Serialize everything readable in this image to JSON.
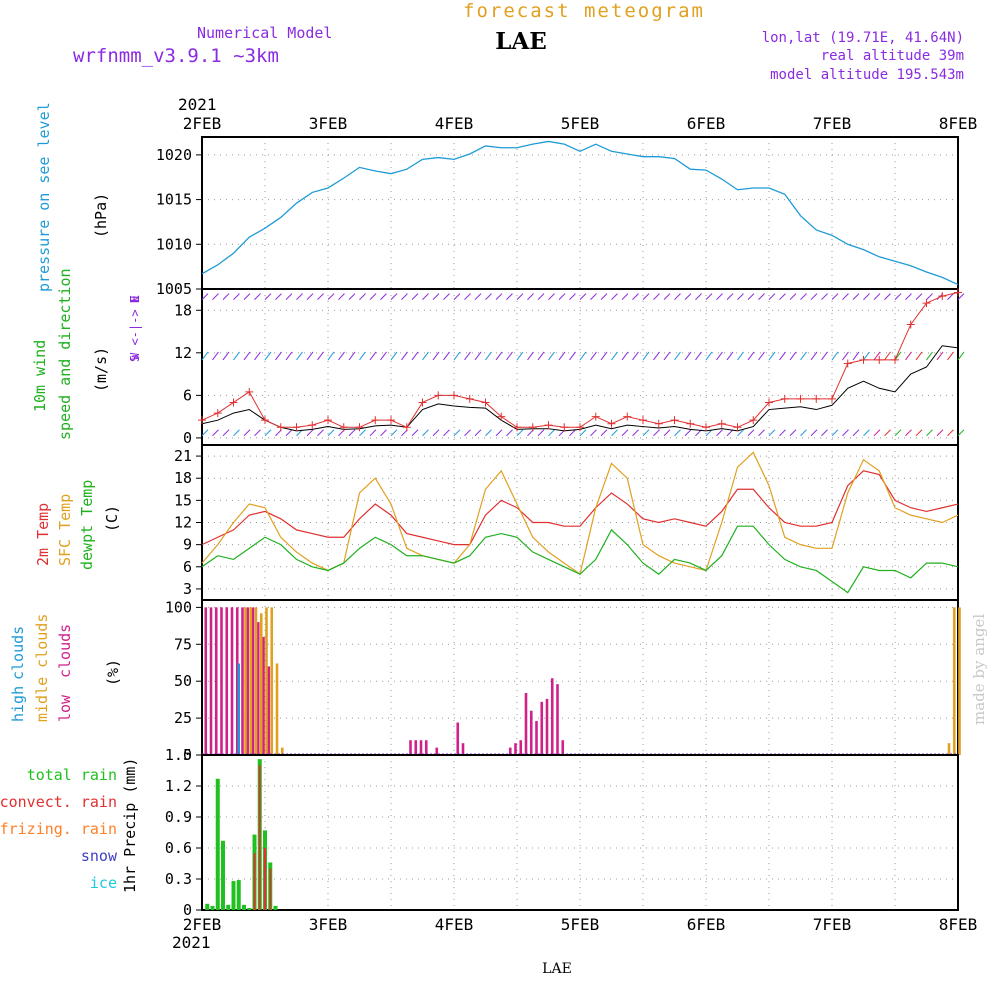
{
  "header": {
    "model_label": "Numerical Model",
    "model_name": "wrfnmm_v3.9.1   ~3km",
    "chart_title": "forecast meteogram",
    "station": "LAE",
    "lonlat": "lon,lat (19.71E, 41.64N)",
    "real_altitude": "real altitude 39m",
    "model_altitude": "model altitude  195.543m"
  },
  "footer": {
    "station": "LAE"
  },
  "watermark": "made by angel",
  "colors": {
    "pressure": "#1e9bd7",
    "wind_label": "#20b020",
    "temp2m": "#e03030",
    "sfc_temp": "#e0a020",
    "dewpoint": "#20b020",
    "high_clouds": "#1e9bd7",
    "middle_clouds": "#e0a020",
    "low_clouds": "#d0208a",
    "compass": "#8a2be2",
    "total_rain": "#20c020",
    "convect_rain": "#e03030",
    "freezing_rain": "#ff7f27",
    "snow": "#4040c0",
    "ice": "#1ec8e0",
    "title": "#e0a020",
    "model": "#8a2be2",
    "watermark": "#c8c8c8"
  },
  "chart_data": {
    "type": "line",
    "year": "2021",
    "x_dates": [
      "2FEB",
      "3FEB",
      "4FEB",
      "5FEB",
      "6FEB",
      "7FEB",
      "8FEB"
    ],
    "x_range_hours": [
      0,
      144
    ],
    "panels": [
      {
        "id": "pressure",
        "ylabels": [
          "pressure on see level",
          "(hPa)"
        ],
        "ylim": [
          1005,
          1022
        ],
        "yticks": [
          1005,
          1010,
          1015,
          1020
        ],
        "series": [
          {
            "name": "pressure on see level",
            "x": [
              0,
              3,
              6,
              9,
              12,
              15,
              18,
              21,
              24,
              27,
              30,
              33,
              36,
              39,
              42,
              45,
              48,
              51,
              54,
              57,
              60,
              63,
              66,
              69,
              72,
              75,
              78,
              81,
              84,
              87,
              90,
              93,
              96,
              99,
              102,
              105,
              108,
              111,
              114,
              117,
              120,
              123,
              126,
              129,
              132,
              135,
              138,
              141,
              144
            ],
            "y": [
              1006.7,
              1007.7,
              1009.0,
              1010.8,
              1011.8,
              1013.0,
              1014.6,
              1015.8,
              1016.3,
              1017.4,
              1018.6,
              1018.2,
              1017.9,
              1018.4,
              1019.5,
              1019.7,
              1019.5,
              1020.1,
              1021.0,
              1020.8,
              1020.8,
              1021.2,
              1021.5,
              1021.2,
              1020.4,
              1021.2,
              1020.4,
              1020.1,
              1019.8,
              1019.8,
              1019.6,
              1018.4,
              1018.3,
              1017.3,
              1016.1,
              1016.3,
              1016.3,
              1015.6,
              1013.2,
              1011.6,
              1011.0,
              1010.0,
              1009.4,
              1008.6,
              1008.1,
              1007.6,
              1006.9,
              1006.3,
              1005.5
            ]
          }
        ]
      },
      {
        "id": "wind",
        "ylabels": [
          "10m wind",
          "speed and direction",
          "(m/s)"
        ],
        "compass": [
          "N",
          "W <-|-> E",
          "S"
        ],
        "ylim": [
          -1,
          21
        ],
        "yticks": [
          0,
          6,
          12,
          18
        ],
        "series": [
          {
            "name": "10m wind speed",
            "x": [
              0,
              3,
              6,
              9,
              12,
              15,
              18,
              21,
              24,
              27,
              30,
              33,
              36,
              39,
              42,
              45,
              48,
              51,
              54,
              57,
              60,
              63,
              66,
              69,
              72,
              75,
              78,
              81,
              84,
              87,
              90,
              93,
              96,
              99,
              102,
              105,
              108,
              111,
              114,
              117,
              120,
              123,
              126,
              129,
              132,
              135,
              138,
              141,
              144
            ],
            "y": [
              2.0,
              2.5,
              3.5,
              4.0,
              2.5,
              1.5,
              1.0,
              1.2,
              1.6,
              1.2,
              1.3,
              1.7,
              1.8,
              1.5,
              4.0,
              4.8,
              4.5,
              4.3,
              4.2,
              2.5,
              1.2,
              1.3,
              1.3,
              1.0,
              1.2,
              1.8,
              1.3,
              1.8,
              1.6,
              1.4,
              1.6,
              1.2,
              1.0,
              1.3,
              1.0,
              1.6,
              4.0,
              4.2,
              4.4,
              4.0,
              4.6,
              7.0,
              8.0,
              7.0,
              6.5,
              9.0,
              10.0,
              13.0,
              12.7
            ]
          },
          {
            "name": "10m wind gust",
            "x": [
              0,
              3,
              6,
              9,
              12,
              15,
              18,
              21,
              24,
              27,
              30,
              33,
              36,
              39,
              42,
              45,
              48,
              51,
              54,
              57,
              60,
              63,
              66,
              69,
              72,
              75,
              78,
              81,
              84,
              87,
              90,
              93,
              96,
              99,
              102,
              105,
              108,
              111,
              114,
              117,
              120,
              123,
              126,
              129,
              132,
              135,
              138,
              141,
              144
            ],
            "y": [
              2.5,
              3.5,
              5.0,
              6.5,
              2.5,
              1.5,
              1.5,
              1.8,
              2.5,
              1.5,
              1.5,
              2.5,
              2.5,
              1.5,
              5.0,
              6.0,
              6.0,
              5.5,
              5.0,
              3.0,
              1.5,
              1.5,
              1.8,
              1.5,
              1.5,
              3.0,
              2.0,
              3.0,
              2.5,
              2.0,
              2.5,
              2.0,
              1.5,
              2.0,
              1.5,
              2.5,
              5.0,
              5.5,
              5.5,
              5.5,
              5.5,
              10.5,
              11.0,
              11.0,
              11.0,
              16.0,
              19.0,
              20.0,
              20.5
            ]
          }
        ]
      },
      {
        "id": "temperature",
        "ylabels": [
          "2m Temp",
          "SFC Temp",
          "dewpt Temp",
          "(C)"
        ],
        "ylim": [
          1.5,
          22.5
        ],
        "yticks": [
          3,
          6,
          9,
          12,
          15,
          18,
          21
        ],
        "series": [
          {
            "name": "2m Temp",
            "x": [
              0,
              3,
              6,
              9,
              12,
              15,
              18,
              21,
              24,
              27,
              30,
              33,
              36,
              39,
              42,
              45,
              48,
              51,
              54,
              57,
              60,
              63,
              66,
              69,
              72,
              75,
              78,
              81,
              84,
              87,
              90,
              93,
              96,
              99,
              102,
              105,
              108,
              111,
              114,
              117,
              120,
              123,
              126,
              129,
              132,
              135,
              138,
              141,
              144
            ],
            "y": [
              9.0,
              10.0,
              11.0,
              13.0,
              13.5,
              12.5,
              11.0,
              10.5,
              10.0,
              10.0,
              12.5,
              14.5,
              13.0,
              10.5,
              10.0,
              9.5,
              9.0,
              9.0,
              13.0,
              15.0,
              14.0,
              12.0,
              12.0,
              11.5,
              11.5,
              14.0,
              16.0,
              14.5,
              12.5,
              12.0,
              12.5,
              12.0,
              11.5,
              13.5,
              16.5,
              16.5,
              14.0,
              12.0,
              11.5,
              11.5,
              12.0,
              17.0,
              19.0,
              18.5,
              15.0,
              14.0,
              13.5,
              14.0,
              14.5
            ]
          },
          {
            "name": "SFC Temp",
            "x": [
              0,
              3,
              6,
              9,
              12,
              15,
              18,
              21,
              24,
              27,
              30,
              33,
              36,
              39,
              42,
              45,
              48,
              51,
              54,
              57,
              60,
              63,
              66,
              69,
              72,
              75,
              78,
              81,
              84,
              87,
              90,
              93,
              96,
              99,
              102,
              105,
              108,
              111,
              114,
              117,
              120,
              123,
              126,
              129,
              132,
              135,
              138,
              141,
              144
            ],
            "y": [
              6.5,
              9.0,
              12.0,
              14.5,
              14.0,
              10.0,
              8.0,
              6.5,
              5.5,
              6.5,
              16.0,
              18.0,
              14.5,
              8.5,
              7.5,
              7.0,
              6.5,
              9.0,
              16.5,
              19.0,
              14.5,
              10.0,
              8.0,
              6.5,
              5.0,
              14.0,
              20.0,
              18.0,
              9.0,
              7.5,
              6.5,
              6.0,
              5.5,
              12.0,
              19.5,
              21.5,
              17.0,
              10.0,
              9.0,
              8.5,
              8.5,
              16.0,
              20.5,
              19.0,
              14.0,
              13.0,
              12.5,
              12.0,
              13.0
            ]
          },
          {
            "name": "dewpt Temp",
            "x": [
              0,
              3,
              6,
              9,
              12,
              15,
              18,
              21,
              24,
              27,
              30,
              33,
              36,
              39,
              42,
              45,
              48,
              51,
              54,
              57,
              60,
              63,
              66,
              69,
              72,
              75,
              78,
              81,
              84,
              87,
              90,
              93,
              96,
              99,
              102,
              105,
              108,
              111,
              114,
              117,
              120,
              123,
              126,
              129,
              132,
              135,
              138,
              141,
              144
            ],
            "y": [
              6.0,
              7.5,
              7.0,
              8.5,
              10.0,
              9.0,
              7.0,
              6.0,
              5.5,
              6.5,
              8.5,
              10.0,
              9.0,
              7.5,
              7.5,
              7.0,
              6.5,
              7.5,
              10.0,
              10.5,
              10.0,
              8.0,
              7.0,
              6.0,
              5.0,
              7.0,
              11.0,
              9.0,
              6.5,
              5.0,
              7.0,
              6.5,
              5.5,
              7.5,
              11.5,
              11.5,
              9.0,
              7.0,
              6.0,
              5.5,
              4.0,
              2.5,
              6.0,
              5.5,
              5.5,
              4.5,
              6.5,
              6.5,
              6.0
            ]
          }
        ]
      },
      {
        "id": "clouds",
        "ylabels": [
          "high",
          "clouds",
          "midle clouds",
          "low",
          "clouds",
          "(%)"
        ],
        "ylim": [
          0,
          105
        ],
        "yticks": [
          0,
          25,
          50,
          75,
          100
        ],
        "series": [
          {
            "name": "low clouds",
            "x": [
              1,
              2,
              3,
              4,
              5,
              6,
              7,
              8,
              9,
              10,
              11,
              12,
              13,
              40,
              41,
              42,
              43,
              45,
              49,
              50,
              59,
              60,
              61,
              62,
              63,
              64,
              65,
              66,
              67,
              68,
              69
            ],
            "y": [
              100,
              100,
              100,
              100,
              100,
              100,
              100,
              100,
              100,
              100,
              90,
              80,
              60,
              10,
              10,
              10,
              10,
              5,
              22,
              8,
              5,
              8,
              10,
              42,
              30,
              23,
              36,
              38,
              52,
              48,
              10
            ]
          },
          {
            "name": "midle clouds",
            "x": [
              8,
              9,
              10,
              11,
              12,
              13,
              14,
              15,
              142,
              143,
              144
            ],
            "y": [
              100,
              100,
              100,
              96,
              100,
              100,
              62,
              5,
              8,
              100,
              100
            ]
          },
          {
            "name": "high clouds",
            "x": [
              7
            ],
            "y": [
              62
            ]
          }
        ]
      },
      {
        "id": "precip",
        "ylabels": [
          "1hr Precip (mm)"
        ],
        "legend": [
          "total      rain",
          "convect. rain",
          "frizing. rain",
          "snow",
          "ice"
        ],
        "ylim": [
          0,
          1.5
        ],
        "yticks": [
          0,
          0.3,
          0.6,
          0.9,
          1.2,
          1.5
        ],
        "series": [
          {
            "name": "total rain",
            "x": [
              1,
              2,
              3,
              4,
              5,
              6,
              7,
              8,
              9,
              10,
              11,
              12,
              13,
              14
            ],
            "y": [
              0.06,
              0.04,
              1.27,
              0.67,
              0.05,
              0.28,
              0.29,
              0.05,
              0.02,
              0.73,
              1.46,
              0.77,
              0.46,
              0.04
            ]
          },
          {
            "name": "convect. rain",
            "x": [
              10,
              11,
              12,
              13
            ],
            "y": [
              0.55,
              1.4,
              0.6,
              0.4
            ]
          }
        ]
      }
    ]
  }
}
